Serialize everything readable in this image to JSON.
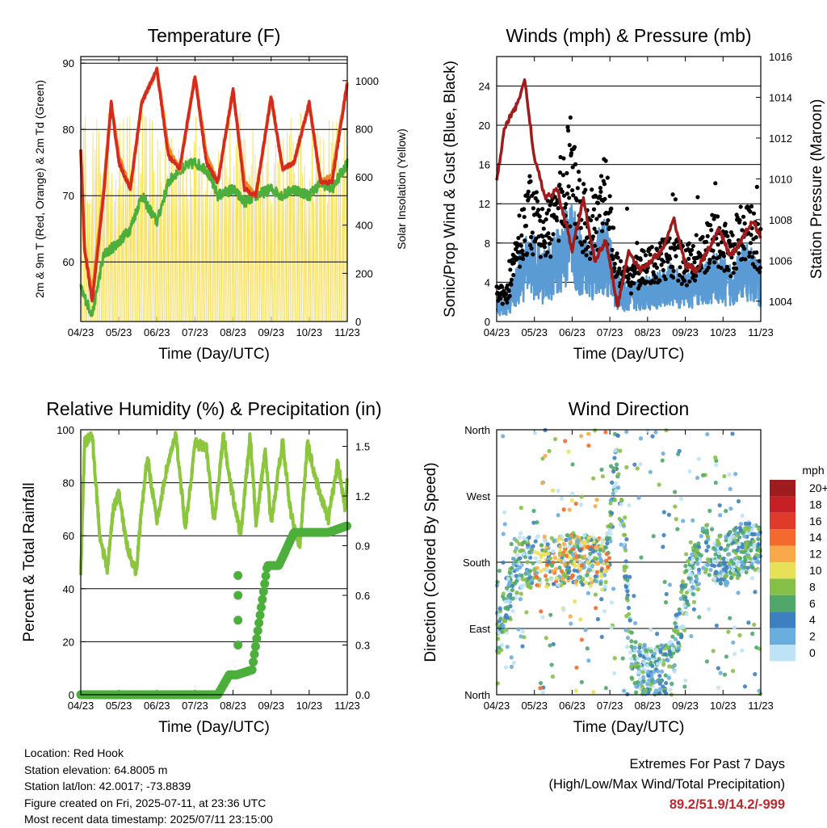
{
  "station": {
    "location": "Location: Red Hook",
    "elevation": "Station elevation: 64.8005 m",
    "latlon": "Station lat/lon: 42.0017; -73.8839",
    "created": "Figure created on Fri, 2025-07-11, at 23:36 UTC",
    "recent": "Most recent data timestamp: 2025/07/11 23:15:00"
  },
  "extremes": {
    "title": "Extremes For Past 7 Days",
    "subtitle": "(High/Low/Max Wind/Total Precipitation)",
    "values": "89.2/51.9/14.2/-999",
    "color": "#c0272d"
  },
  "chart_data": [
    {
      "type": "line",
      "title": "Temperature (F)",
      "xlabel": "Time (Day/UTC)",
      "ylabel": "2m & 9m T (Red, Orange) & 2m Td (Green)",
      "y2label": "Solar Insolation (Yellow)",
      "x_ticks": [
        "04/23",
        "05/23",
        "06/23",
        "07/23",
        "08/23",
        "09/23",
        "10/23",
        "11/23"
      ],
      "ylim": [
        51,
        91
      ],
      "yticks": [
        60,
        70,
        80,
        90
      ],
      "y2lim": [
        0,
        1100
      ],
      "y2ticks": [
        0,
        200,
        400,
        600,
        800,
        1000
      ],
      "grid": true,
      "colors": {
        "t2m": "#d42a20",
        "t9m": "#f08a2c",
        "td": "#4caf3c",
        "solar": "#f7de55"
      },
      "series": [
        {
          "name": "2m T",
          "x": [
            0,
            0.1,
            0.3,
            0.6,
            0.8,
            1.0,
            1.3,
            1.6,
            2.0,
            2.3,
            2.6,
            3.0,
            3.3,
            3.6,
            4.0,
            4.3,
            4.6,
            5.0,
            5.3,
            5.6,
            6.0,
            6.3,
            6.6,
            7.0
          ],
          "values": [
            77,
            62,
            54,
            70,
            84,
            75,
            71,
            84,
            89,
            76,
            74,
            88,
            75,
            72,
            86,
            71,
            70,
            85,
            74,
            75,
            84,
            72,
            72,
            87
          ]
        },
        {
          "name": "9m T",
          "x": [
            0,
            0.1,
            0.3,
            0.6,
            0.8,
            1.0,
            1.3,
            1.6,
            2.0,
            2.3,
            2.6,
            3.0,
            3.3,
            3.6,
            4.0,
            4.3,
            4.6,
            5.0,
            5.3,
            5.6,
            6.0,
            6.3,
            6.6,
            7.0
          ],
          "values": [
            77,
            62,
            55,
            71,
            84,
            76,
            71,
            84,
            89,
            77,
            74,
            88,
            76,
            72,
            86,
            72,
            70,
            85,
            74,
            75,
            84,
            72,
            73,
            87
          ]
        },
        {
          "name": "2m Td",
          "x": [
            0,
            0.3,
            0.6,
            0.8,
            1.0,
            1.3,
            1.6,
            2.0,
            2.3,
            2.6,
            3.0,
            3.3,
            3.6,
            4.0,
            4.3,
            4.6,
            5.0,
            5.3,
            5.6,
            6.0,
            6.3,
            6.6,
            7.0
          ],
          "values": [
            56,
            52,
            61,
            62,
            63,
            65,
            70,
            66,
            72,
            74,
            75,
            74,
            70,
            71,
            69,
            70,
            71,
            70,
            71,
            70,
            72,
            71,
            75
          ]
        }
      ]
    },
    {
      "type": "line",
      "title": "Winds (mph) & Pressure (mb)",
      "xlabel": "Time (Day/UTC)",
      "ylabel": "Sonic/Prop Wind & Gust (Blue, Black)",
      "y2label": "Station Pressure (Maroon)",
      "x_ticks": [
        "04/23",
        "05/23",
        "06/23",
        "07/23",
        "08/23",
        "09/23",
        "10/23",
        "11/23"
      ],
      "ylim": [
        0,
        27
      ],
      "yticks": [
        0,
        4,
        8,
        12,
        16,
        20,
        24
      ],
      "y2lim": [
        1003,
        1016
      ],
      "y2ticks": [
        1004,
        1006,
        1008,
        1010,
        1012,
        1014,
        1016
      ],
      "grid": true,
      "colors": {
        "wind": "#5b9bd5",
        "gust": "#000000",
        "pressure": "#a01c1c"
      },
      "series": [
        {
          "name": "Pressure",
          "x": [
            0,
            0.2,
            0.5,
            0.75,
            1.0,
            1.3,
            1.6,
            2.0,
            2.3,
            2.6,
            2.9,
            3.2,
            3.5,
            3.8,
            4.1,
            4.4,
            4.7,
            5.0,
            5.3,
            5.6,
            5.9,
            6.2,
            6.5,
            6.8,
            7.0
          ],
          "values": [
            1009.8,
            1012.5,
            1013.5,
            1014.8,
            1011,
            1009,
            1009.5,
            1006.5,
            1009,
            1006,
            1007,
            1003.7,
            1006.5,
            1005.5,
            1006,
            1006.5,
            1008,
            1005.8,
            1005.5,
            1006.5,
            1007.5,
            1006.2,
            1007,
            1008,
            1007
          ]
        }
      ]
    },
    {
      "type": "line",
      "title": "Relative Humidity (%) & Precipitation (in)",
      "xlabel": "Time (Day/UTC)",
      "ylabel": "Percent & Total Rainfall",
      "x_ticks": [
        "04/23",
        "05/23",
        "06/23",
        "07/23",
        "08/23",
        "09/23",
        "10/23",
        "11/23"
      ],
      "ylim": [
        0,
        100
      ],
      "yticks": [
        0,
        20,
        40,
        60,
        80,
        100
      ],
      "y2lim": [
        0,
        1.6
      ],
      "y2ticks": [
        0.0,
        0.3,
        0.6,
        0.9,
        1.2,
        1.5
      ],
      "y2tick_labels": [
        "0.0",
        "0.3",
        "0.6",
        "0.9",
        "1.2",
        "1.5"
      ],
      "grid": true,
      "colors": {
        "rh": "#8cc63f",
        "precip": "#4caf3c"
      },
      "series": [
        {
          "name": "RH",
          "x": [
            0,
            0.1,
            0.3,
            0.5,
            0.7,
            0.85,
            1.0,
            1.2,
            1.45,
            1.6,
            1.75,
            2.0,
            2.25,
            2.5,
            2.75,
            3.0,
            3.3,
            3.5,
            3.75,
            3.9,
            4.2,
            4.45,
            4.6,
            4.85,
            5.0,
            5.3,
            5.5,
            5.75,
            5.95,
            6.2,
            6.5,
            6.75,
            6.95,
            7.0
          ],
          "values": [
            46,
            95,
            98,
            60,
            47,
            70,
            76,
            57,
            46,
            70,
            90,
            65,
            85,
            98,
            62,
            95,
            93,
            65,
            98,
            82,
            60,
            98,
            65,
            92,
            64,
            96,
            70,
            55,
            95,
            80,
            66,
            88,
            70,
            82
          ]
        },
        {
          "name": "Precipitation",
          "x": [
            0,
            0.5,
            1.0,
            1.5,
            2.0,
            2.5,
            3.0,
            3.3,
            3.6,
            3.9,
            4.1,
            4.5,
            4.9,
            5.2,
            5.6,
            6.0,
            6.5,
            7.0
          ],
          "values": [
            0,
            0,
            0,
            0,
            0,
            0,
            0,
            0,
            0,
            0.12,
            0.12,
            0.15,
            0.78,
            0.78,
            0.98,
            0.98,
            0.98,
            1.02
          ]
        }
      ]
    },
    {
      "type": "scatter",
      "title": "Wind Direction",
      "xlabel": "Time (Day/UTC)",
      "ylabel": "Direction (Colored By Speed)",
      "x_ticks": [
        "04/23",
        "05/23",
        "06/23",
        "07/23",
        "08/23",
        "09/23",
        "10/23",
        "11/23"
      ],
      "ylim": [
        0,
        360
      ],
      "yticks": [
        "North",
        "East",
        "South",
        "West",
        "North"
      ],
      "grid": true,
      "legend": {
        "title": "mph",
        "placement": "right",
        "labels": [
          "20+",
          "18",
          "16",
          "14",
          "12",
          "10",
          "8",
          "6",
          "4",
          "2",
          "0"
        ],
        "colors": [
          "#9e1b1e",
          "#c62026",
          "#e03a2b",
          "#f26a2e",
          "#f9a84a",
          "#e9e05a",
          "#86c049",
          "#4fa86a",
          "#3d7fbf",
          "#6aaedf",
          "#bfe3f6"
        ]
      }
    }
  ]
}
